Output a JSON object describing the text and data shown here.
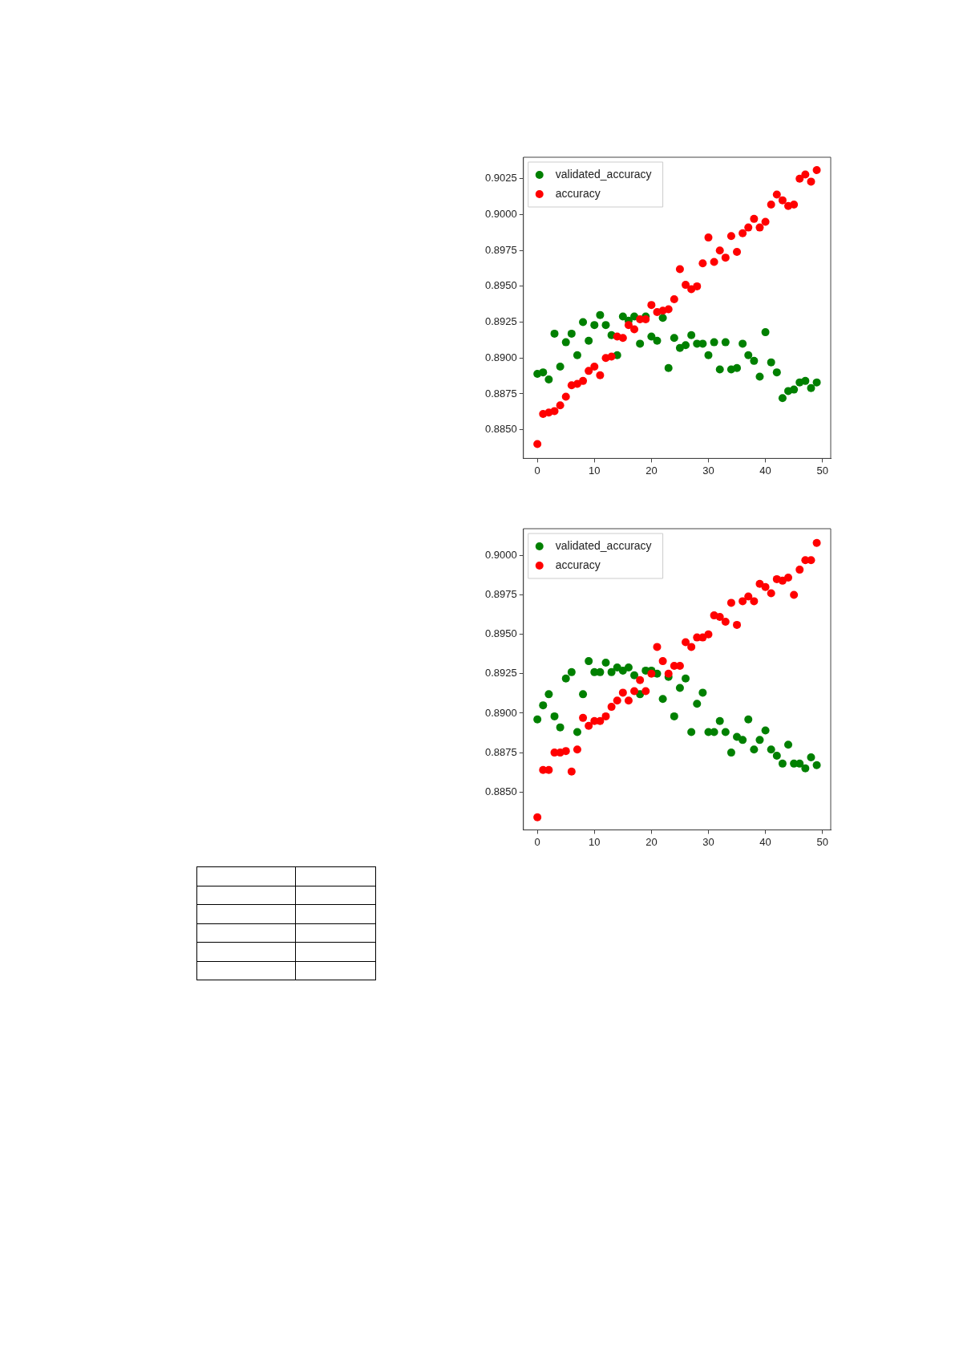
{
  "chart_data": [
    {
      "type": "scatter",
      "x": [
        0,
        1,
        2,
        3,
        4,
        5,
        6,
        7,
        8,
        9,
        10,
        11,
        12,
        13,
        14,
        15,
        16,
        17,
        18,
        19,
        20,
        21,
        22,
        23,
        24,
        25,
        26,
        27,
        28,
        29,
        30,
        31,
        32,
        33,
        34,
        35,
        36,
        37,
        38,
        39,
        40,
        41,
        42,
        43,
        44,
        45,
        46,
        47,
        48,
        49
      ],
      "series": [
        {
          "name": "validated_accuracy",
          "color": "#008000",
          "values": [
            0.8889,
            0.889,
            0.8885,
            0.8917,
            0.8894,
            0.8911,
            0.8917,
            0.8902,
            0.8925,
            0.8912,
            0.8923,
            0.893,
            0.8923,
            0.8916,
            0.8902,
            0.8929,
            0.8926,
            0.8929,
            0.891,
            0.8929,
            0.8915,
            0.8912,
            0.8928,
            0.8893,
            0.8914,
            0.8907,
            0.8909,
            0.8916,
            0.891,
            0.891,
            0.8902,
            0.8911,
            0.8892,
            0.8911,
            0.8892,
            0.8893,
            0.891,
            0.8902,
            0.8898,
            0.8887,
            0.8918,
            0.8897,
            0.889,
            0.8872,
            0.8877,
            0.8878,
            0.8883,
            0.8884,
            0.8879,
            0.8883
          ]
        },
        {
          "name": "accuracy",
          "color": "#ff0000",
          "values": [
            0.884,
            0.8861,
            0.8862,
            0.8863,
            0.8867,
            0.8873,
            0.8881,
            0.8882,
            0.8884,
            0.8891,
            0.8894,
            0.8888,
            0.89,
            0.8901,
            0.8915,
            0.8914,
            0.8923,
            0.892,
            0.8927,
            0.8927,
            0.8937,
            0.8932,
            0.8933,
            0.8934,
            0.8941,
            0.8962,
            0.8951,
            0.8948,
            0.895,
            0.8966,
            0.8984,
            0.8967,
            0.8975,
            0.897,
            0.8985,
            0.8974,
            0.8987,
            0.8991,
            0.8997,
            0.8991,
            0.8995,
            0.9007,
            0.9014,
            0.901,
            0.9006,
            0.9007,
            0.9025,
            0.9028,
            0.9023,
            0.9031
          ]
        }
      ],
      "xlim": [
        -2.45,
        51.45
      ],
      "xticks": [
        0,
        10,
        20,
        30,
        40,
        50
      ],
      "ylim": [
        0.883,
        0.904
      ],
      "yticks": [
        {
          "value": 0.885,
          "label": "0.8850"
        },
        {
          "value": 0.8875,
          "label": "0.8875"
        },
        {
          "value": 0.89,
          "label": "0.8900"
        },
        {
          "value": 0.8925,
          "label": "0.8925"
        },
        {
          "value": 0.895,
          "label": "0.8950"
        },
        {
          "value": 0.8975,
          "label": "0.8975"
        },
        {
          "value": 0.9,
          "label": "0.9000"
        },
        {
          "value": 0.9025,
          "label": "0.9025"
        }
      ],
      "legend": "top left",
      "marker": "circle"
    },
    {
      "type": "scatter",
      "x": [
        0,
        1,
        2,
        3,
        4,
        5,
        6,
        7,
        8,
        9,
        10,
        11,
        12,
        13,
        14,
        15,
        16,
        17,
        18,
        19,
        20,
        21,
        22,
        23,
        24,
        25,
        26,
        27,
        28,
        29,
        30,
        31,
        32,
        33,
        34,
        35,
        36,
        37,
        38,
        39,
        40,
        41,
        42,
        43,
        44,
        45,
        46,
        47,
        48,
        49
      ],
      "series": [
        {
          "name": "validated_accuracy",
          "color": "#008000",
          "values": [
            0.8896,
            0.8905,
            0.8912,
            0.8898,
            0.8891,
            0.8922,
            0.8926,
            0.8888,
            0.8912,
            0.8933,
            0.8926,
            0.8926,
            0.8932,
            0.8926,
            0.8929,
            0.8927,
            0.8929,
            0.8924,
            0.8912,
            0.8927,
            0.8927,
            0.8925,
            0.8909,
            0.8923,
            0.8898,
            0.8916,
            0.8922,
            0.8888,
            0.8906,
            0.8913,
            0.8888,
            0.8888,
            0.8895,
            0.8888,
            0.8875,
            0.8885,
            0.8883,
            0.8896,
            0.8877,
            0.8883,
            0.8889,
            0.8877,
            0.8873,
            0.8868,
            0.888,
            0.8868,
            0.8868,
            0.8865,
            0.8872,
            0.8867
          ]
        },
        {
          "name": "accuracy",
          "color": "#ff0000",
          "values": [
            0.8834,
            0.8864,
            0.8864,
            0.8875,
            0.8875,
            0.8876,
            0.8863,
            0.8877,
            0.8897,
            0.8892,
            0.8895,
            0.8895,
            0.8898,
            0.8904,
            0.8908,
            0.8913,
            0.8908,
            0.8914,
            0.8921,
            0.8914,
            0.8925,
            0.8942,
            0.8933,
            0.8925,
            0.893,
            0.893,
            0.8945,
            0.8942,
            0.8948,
            0.8948,
            0.895,
            0.8962,
            0.8961,
            0.8958,
            0.897,
            0.8956,
            0.8971,
            0.8974,
            0.8971,
            0.8982,
            0.898,
            0.8976,
            0.8985,
            0.8984,
            0.8986,
            0.8975,
            0.8991,
            0.8997,
            0.8997,
            0.9008
          ]
        }
      ],
      "xlim": [
        -2.45,
        51.45
      ],
      "xticks": [
        0,
        10,
        20,
        30,
        40,
        50
      ],
      "ylim": [
        0.8826,
        0.9017
      ],
      "yticks": [
        {
          "value": 0.885,
          "label": "0.8850"
        },
        {
          "value": 0.8875,
          "label": "0.8875"
        },
        {
          "value": 0.89,
          "label": "0.8900"
        },
        {
          "value": 0.8925,
          "label": "0.8925"
        },
        {
          "value": 0.895,
          "label": "0.8950"
        },
        {
          "value": 0.8975,
          "label": "0.8975"
        },
        {
          "value": 0.9,
          "label": "0.9000"
        }
      ],
      "legend": "top left",
      "marker": "circle"
    }
  ]
}
